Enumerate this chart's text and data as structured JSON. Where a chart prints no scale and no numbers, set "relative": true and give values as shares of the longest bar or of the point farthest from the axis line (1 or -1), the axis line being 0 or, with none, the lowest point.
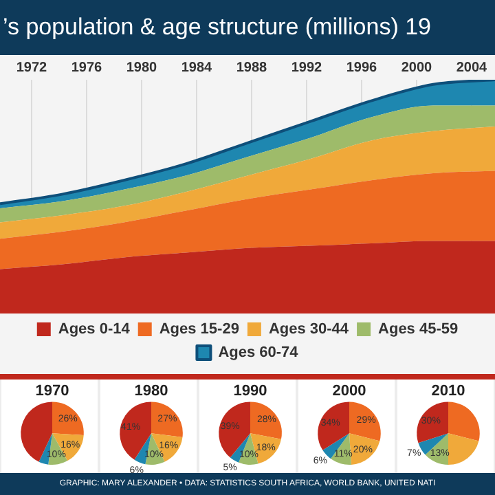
{
  "chart_data": [
    {
      "type": "area",
      "title": "’s population & age structure (millions) 19",
      "stacked": true,
      "relative": true,
      "x": [
        1969.7,
        1974.2,
        1978.7,
        1983.2,
        1987.7,
        1992.2,
        1996.7,
        2001.2,
        2005.7
      ],
      "xlim": [
        1969.7,
        2005.7
      ],
      "xticks": [
        1972,
        1976,
        1980,
        1984,
        1988,
        1992,
        1996,
        2000,
        2004
      ],
      "grid": "x",
      "legend": "bottom",
      "annotations": [
        "GRAPHIC: MARY ALEXANDER • DATA: STATISTICS SOUTH AFRICA, WORLD BANK, UNITED NATI"
      ],
      "series": [
        {
          "name": "Ages 0-14",
          "color": "#c0281d",
          "values": [
            0.19,
            0.21,
            0.24,
            0.26,
            0.28,
            0.29,
            0.3,
            0.31,
            0.31
          ]
        },
        {
          "name": "Ages 15-29",
          "color": "#ee6a22",
          "values": [
            0.13,
            0.14,
            0.15,
            0.18,
            0.21,
            0.24,
            0.27,
            0.29,
            0.3
          ]
        },
        {
          "name": "Ages 30-44",
          "color": "#f0a93a",
          "values": [
            0.07,
            0.07,
            0.07,
            0.08,
            0.1,
            0.13,
            0.17,
            0.18,
            0.19
          ]
        },
        {
          "name": "Ages 45-59",
          "color": "#9ebb6a",
          "values": [
            0.06,
            0.06,
            0.07,
            0.07,
            0.08,
            0.09,
            0.1,
            0.11,
            0.09
          ]
        },
        {
          "name": "Ages 60-74",
          "color": "#1e87b0",
          "values": [
            0.02,
            0.03,
            0.04,
            0.05,
            0.06,
            0.07,
            0.07,
            0.09,
            0.11
          ]
        }
      ]
    },
    {
      "type": "pie",
      "title": "1970",
      "categories": [
        null,
        null,
        null,
        null,
        null
      ],
      "values": [
        26,
        16,
        10,
        5,
        43
      ],
      "colors": [
        "#ee6a22",
        "#f0a93a",
        "#9ebb6a",
        "#1e87b0",
        "#c0281d"
      ],
      "value_labels": [
        "26%",
        "16%",
        "10%",
        null,
        null
      ]
    },
    {
      "type": "pie",
      "title": "1980",
      "categories": [
        null,
        null,
        null,
        null,
        null
      ],
      "values": [
        27,
        16,
        10,
        6,
        41
      ],
      "colors": [
        "#ee6a22",
        "#f0a93a",
        "#9ebb6a",
        "#1e87b0",
        "#c0281d"
      ],
      "value_labels": [
        "27%",
        "16%",
        "10%",
        "6%",
        "41%"
      ]
    },
    {
      "type": "pie",
      "title": "1990",
      "categories": [
        null,
        null,
        null,
        null,
        null
      ],
      "values": [
        28,
        18,
        10,
        5,
        39
      ],
      "colors": [
        "#ee6a22",
        "#f0a93a",
        "#9ebb6a",
        "#1e87b0",
        "#c0281d"
      ],
      "value_labels": [
        "28%",
        "18%",
        "10%",
        "5%",
        "39%"
      ]
    },
    {
      "type": "pie",
      "title": "2000",
      "categories": [
        null,
        null,
        null,
        null,
        null
      ],
      "values": [
        29,
        20,
        11,
        6,
        34
      ],
      "colors": [
        "#ee6a22",
        "#f0a93a",
        "#9ebb6a",
        "#1e87b0",
        "#c0281d"
      ],
      "value_labels": [
        "29%",
        "20%",
        "11%",
        "6%",
        "34%"
      ]
    },
    {
      "type": "pie",
      "title": "2010",
      "categories": [
        null,
        null,
        null,
        null,
        null
      ],
      "values": [
        29,
        21,
        13,
        7,
        30
      ],
      "colors": [
        "#ee6a22",
        "#f0a93a",
        "#9ebb6a",
        "#1e87b0",
        "#c0281d"
      ],
      "value_labels": [
        null,
        null,
        "13%",
        "7%",
        "30%"
      ]
    }
  ]
}
